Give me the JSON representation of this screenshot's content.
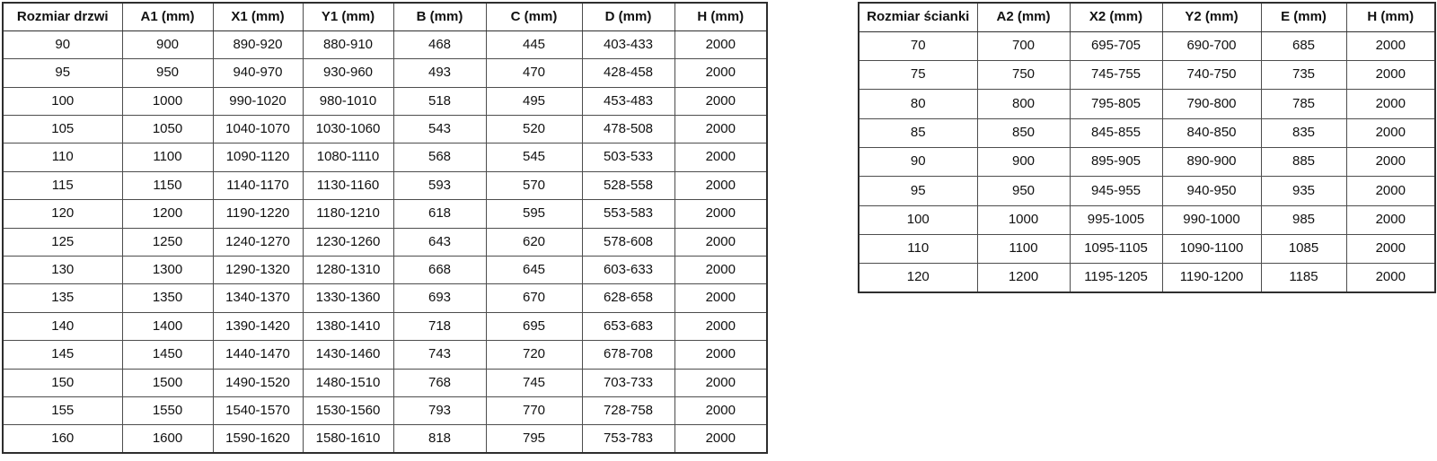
{
  "page": {
    "background_color": "#ffffff",
    "text_color": "#111111",
    "border_color": "#4d4d4d",
    "outer_border_color": "#2e2e2e"
  },
  "door_table": {
    "name": "door-size-table",
    "headers": [
      "Rozmiar drzwi",
      "A1 (mm)",
      "X1 (mm)",
      "Y1 (mm)",
      "B (mm)",
      "C (mm)",
      "D (mm)",
      "H (mm)"
    ],
    "rows": [
      [
        "90",
        "900",
        "890-920",
        "880-910",
        "468",
        "445",
        "403-433",
        "2000"
      ],
      [
        "95",
        "950",
        "940-970",
        "930-960",
        "493",
        "470",
        "428-458",
        "2000"
      ],
      [
        "100",
        "1000",
        "990-1020",
        "980-1010",
        "518",
        "495",
        "453-483",
        "2000"
      ],
      [
        "105",
        "1050",
        "1040-1070",
        "1030-1060",
        "543",
        "520",
        "478-508",
        "2000"
      ],
      [
        "110",
        "1100",
        "1090-1120",
        "1080-1110",
        "568",
        "545",
        "503-533",
        "2000"
      ],
      [
        "115",
        "1150",
        "1140-1170",
        "1130-1160",
        "593",
        "570",
        "528-558",
        "2000"
      ],
      [
        "120",
        "1200",
        "1190-1220",
        "1180-1210",
        "618",
        "595",
        "553-583",
        "2000"
      ],
      [
        "125",
        "1250",
        "1240-1270",
        "1230-1260",
        "643",
        "620",
        "578-608",
        "2000"
      ],
      [
        "130",
        "1300",
        "1290-1320",
        "1280-1310",
        "668",
        "645",
        "603-633",
        "2000"
      ],
      [
        "135",
        "1350",
        "1340-1370",
        "1330-1360",
        "693",
        "670",
        "628-658",
        "2000"
      ],
      [
        "140",
        "1400",
        "1390-1420",
        "1380-1410",
        "718",
        "695",
        "653-683",
        "2000"
      ],
      [
        "145",
        "1450",
        "1440-1470",
        "1430-1460",
        "743",
        "720",
        "678-708",
        "2000"
      ],
      [
        "150",
        "1500",
        "1490-1520",
        "1480-1510",
        "768",
        "745",
        "703-733",
        "2000"
      ],
      [
        "155",
        "1550",
        "1540-1570",
        "1530-1560",
        "793",
        "770",
        "728-758",
        "2000"
      ],
      [
        "160",
        "1600",
        "1590-1620",
        "1580-1610",
        "818",
        "795",
        "753-783",
        "2000"
      ]
    ]
  },
  "wall_table": {
    "name": "wall-size-table",
    "headers": [
      "Rozmiar ścianki",
      "A2 (mm)",
      "X2 (mm)",
      "Y2 (mm)",
      "E (mm)",
      "H (mm)"
    ],
    "rows": [
      [
        "70",
        "700",
        "695-705",
        "690-700",
        "685",
        "2000"
      ],
      [
        "75",
        "750",
        "745-755",
        "740-750",
        "735",
        "2000"
      ],
      [
        "80",
        "800",
        "795-805",
        "790-800",
        "785",
        "2000"
      ],
      [
        "85",
        "850",
        "845-855",
        "840-850",
        "835",
        "2000"
      ],
      [
        "90",
        "900",
        "895-905",
        "890-900",
        "885",
        "2000"
      ],
      [
        "95",
        "950",
        "945-955",
        "940-950",
        "935",
        "2000"
      ],
      [
        "100",
        "1000",
        "995-1005",
        "990-1000",
        "985",
        "2000"
      ],
      [
        "110",
        "1100",
        "1095-1105",
        "1090-1100",
        "1085",
        "2000"
      ],
      [
        "120",
        "1200",
        "1195-1205",
        "1190-1200",
        "1185",
        "2000"
      ]
    ]
  }
}
